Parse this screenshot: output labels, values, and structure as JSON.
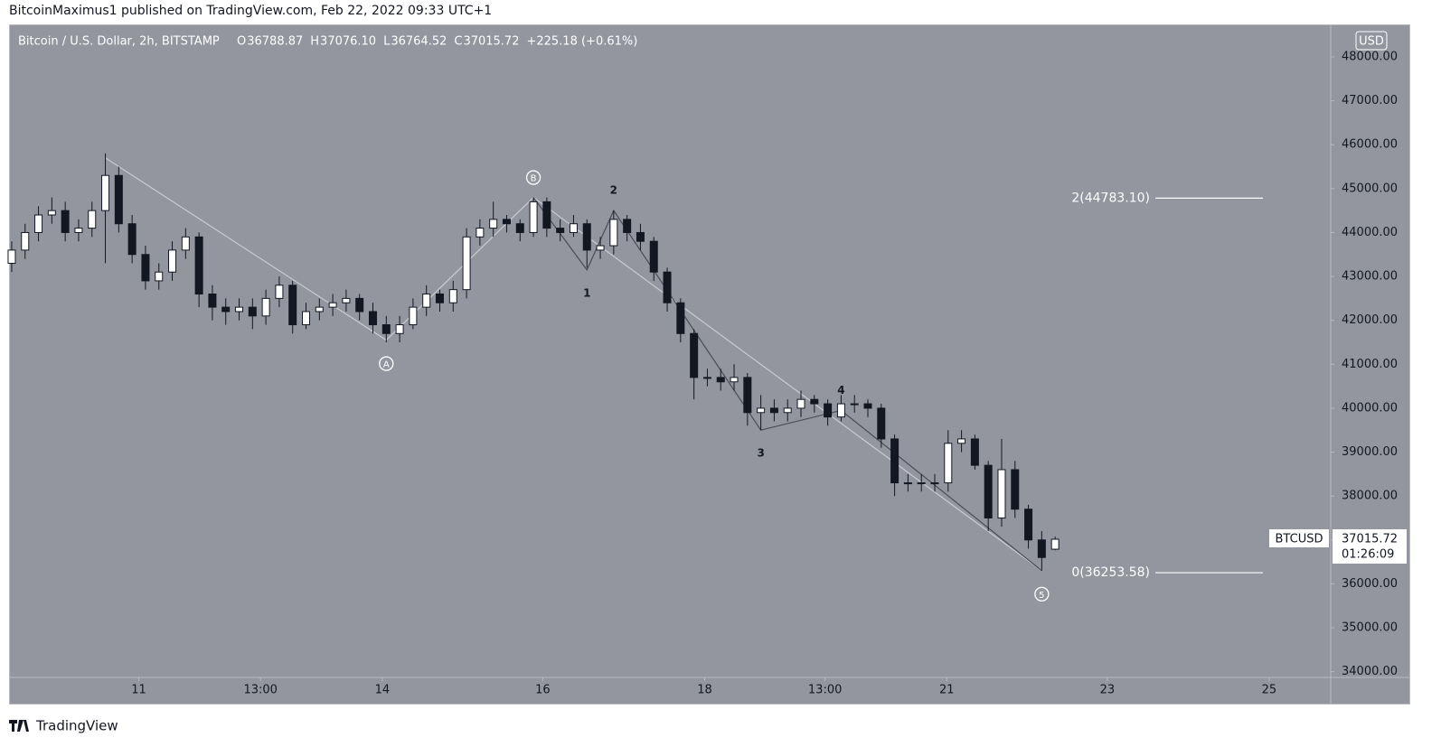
{
  "published": "BitcoinMaximus1 published on TradingView.com, Feb 22, 2022 09:33 UTC+1",
  "brand": "TradingView",
  "chart_data": {
    "type": "candlestick",
    "header": {
      "symbol": "Bitcoin / U.S. Dollar, 2h, BITSTAMP",
      "ohlc": [
        {
          "label": "O",
          "value": "36788.87"
        },
        {
          "label": "H",
          "value": "37076.10"
        },
        {
          "label": "L",
          "value": "36764.52"
        },
        {
          "label": "C",
          "value": "37015.72"
        }
      ],
      "change": "+225.18 (+0.61%)"
    },
    "currency": "USD",
    "colors": {
      "up": "#ffffff",
      "down": "#131722",
      "background": "#93969e"
    },
    "open": [
      43300,
      43600,
      44000,
      44400,
      44500,
      44000,
      44100,
      44500,
      45300,
      44200,
      43500,
      42900,
      43100,
      43600,
      43900,
      42600,
      42300,
      42200,
      42300,
      42100,
      42500,
      42800,
      41900,
      42200,
      42300,
      42400,
      42500,
      42200,
      41900,
      41700,
      41900,
      42300,
      42600,
      42400,
      42700,
      43900,
      44100,
      44300,
      44200,
      44000,
      44700,
      44100,
      44000,
      44200,
      43600,
      43700,
      44300,
      44000,
      43800,
      43100,
      42400,
      41700,
      40700,
      40700,
      40600,
      40700,
      39900,
      40000,
      39900,
      40000,
      40200,
      40100,
      39800,
      40100,
      40100,
      40000,
      39300,
      38300,
      38300,
      38300,
      38300,
      39200,
      39300,
      38700,
      37500,
      38600,
      37700,
      37000,
      36788.87
    ],
    "high": [
      43800,
      44200,
      44600,
      44800,
      44700,
      44300,
      44700,
      45800,
      45500,
      44400,
      43700,
      43300,
      43800,
      44100,
      44000,
      42800,
      42500,
      42500,
      42500,
      42700,
      43000,
      42900,
      42400,
      42500,
      42600,
      42700,
      42600,
      42400,
      42100,
      42100,
      42500,
      42800,
      42700,
      42900,
      44100,
      44300,
      44700,
      44400,
      44300,
      44800,
      44800,
      44300,
      44400,
      44300,
      43900,
      44500,
      44400,
      44200,
      43900,
      43200,
      42500,
      41800,
      40900,
      40900,
      41000,
      40800,
      40300,
      40200,
      40200,
      40400,
      40300,
      40200,
      40300,
      40300,
      40200,
      40100,
      39400,
      38500,
      38500,
      38500,
      39500,
      39500,
      39400,
      38800,
      39300,
      38800,
      37800,
      37200,
      37076.1
    ],
    "low": [
      43100,
      43400,
      43800,
      44200,
      43800,
      43800,
      43900,
      43300,
      44000,
      43300,
      42700,
      42700,
      42900,
      43400,
      42300,
      42000,
      41900,
      42000,
      41800,
      41900,
      42300,
      41700,
      41800,
      42000,
      42100,
      42200,
      42000,
      41700,
      41500,
      41500,
      41800,
      42100,
      42200,
      42200,
      42500,
      43700,
      43900,
      44000,
      43800,
      43900,
      43900,
      43800,
      43900,
      43200,
      43400,
      43500,
      43800,
      43600,
      42900,
      42200,
      41500,
      40200,
      40500,
      40400,
      40400,
      39600,
      39500,
      39700,
      39700,
      39800,
      39900,
      39600,
      39700,
      39900,
      39800,
      39100,
      38000,
      38100,
      38100,
      38100,
      38100,
      39000,
      38600,
      37200,
      37300,
      37500,
      36800,
      36300,
      36764.52
    ],
    "close": [
      43600,
      44000,
      44400,
      44500,
      44000,
      44100,
      44500,
      45300,
      44200,
      43500,
      42900,
      43100,
      43600,
      43900,
      42600,
      42300,
      42200,
      42300,
      42100,
      42500,
      42800,
      41900,
      42200,
      42300,
      42400,
      42500,
      42200,
      41900,
      41700,
      41900,
      42300,
      42600,
      42400,
      42700,
      43900,
      44100,
      44300,
      44200,
      44000,
      44700,
      44100,
      44000,
      44200,
      43600,
      43700,
      44300,
      44000,
      43800,
      43100,
      42400,
      41700,
      40700,
      40700,
      40600,
      40700,
      39900,
      40000,
      39900,
      40000,
      40200,
      40100,
      39800,
      40100,
      40100,
      40000,
      39300,
      38300,
      38300,
      38300,
      38300,
      39200,
      39300,
      38700,
      37500,
      38600,
      37700,
      37000,
      36600,
      37015.72
    ],
    "xlim": [
      -0.2,
      98.6
    ],
    "xticks": [
      {
        "value": 9.5,
        "label": "11"
      },
      {
        "value": 18.6,
        "label": "13:00"
      },
      {
        "value": 27.7,
        "label": "14"
      },
      {
        "value": 39.7,
        "label": "16"
      },
      {
        "value": 51.8,
        "label": "18"
      },
      {
        "value": 60.8,
        "label": "13:00"
      },
      {
        "value": 69.9,
        "label": "21"
      },
      {
        "value": 81.9,
        "label": "23"
      },
      {
        "value": 94.0,
        "label": "25"
      }
    ],
    "ylim": [
      33869,
      48740
    ],
    "yticks": [
      {
        "value": 34000,
        "label": "34000.00"
      },
      {
        "value": 35000,
        "label": "35000.00"
      },
      {
        "value": 36000,
        "label": "36000.00"
      },
      {
        "value": 37000,
        "label": "37000.00"
      },
      {
        "value": 38000,
        "label": "38000.00"
      },
      {
        "value": 39000,
        "label": "39000.00"
      },
      {
        "value": 40000,
        "label": "40000.00"
      },
      {
        "value": 41000,
        "label": "41000.00"
      },
      {
        "value": 42000,
        "label": "42000.00"
      },
      {
        "value": 43000,
        "label": "43000.00"
      },
      {
        "value": 44000,
        "label": "44000.00"
      },
      {
        "value": 45000,
        "label": "45000.00"
      },
      {
        "value": 46000,
        "label": "46000.00"
      },
      {
        "value": 47000,
        "label": "47000.00"
      },
      {
        "value": 48000,
        "label": "48000.00"
      }
    ],
    "wave_start": {
      "index": 7,
      "price": 45700
    },
    "waves": [
      {
        "label": "A",
        "index": 28,
        "price": 41550,
        "circled": true,
        "position": "below"
      },
      {
        "label": "B",
        "index": 39,
        "price": 44800,
        "circled": true,
        "position": "above"
      },
      {
        "label": "1",
        "index": 43,
        "price": 43150,
        "circled": false,
        "position": "below"
      },
      {
        "label": "2",
        "index": 45,
        "price": 44500,
        "circled": false,
        "position": "above"
      },
      {
        "label": "3",
        "index": 56,
        "price": 39500,
        "circled": false,
        "position": "below"
      },
      {
        "label": "4",
        "index": 62,
        "price": 39950,
        "circled": false,
        "position": "above"
      },
      {
        "label": "5",
        "index": 77,
        "price": 36300,
        "circled": true,
        "position": "below"
      }
    ],
    "fib_levels": [
      {
        "label": "2(44783.10)",
        "value": 44783.1
      },
      {
        "label": "0(36253.58)",
        "value": 36253.58
      }
    ],
    "price_tag": {
      "symbol": "BTCUSD",
      "price": "37015.72",
      "countdown": "01:26:09"
    }
  }
}
